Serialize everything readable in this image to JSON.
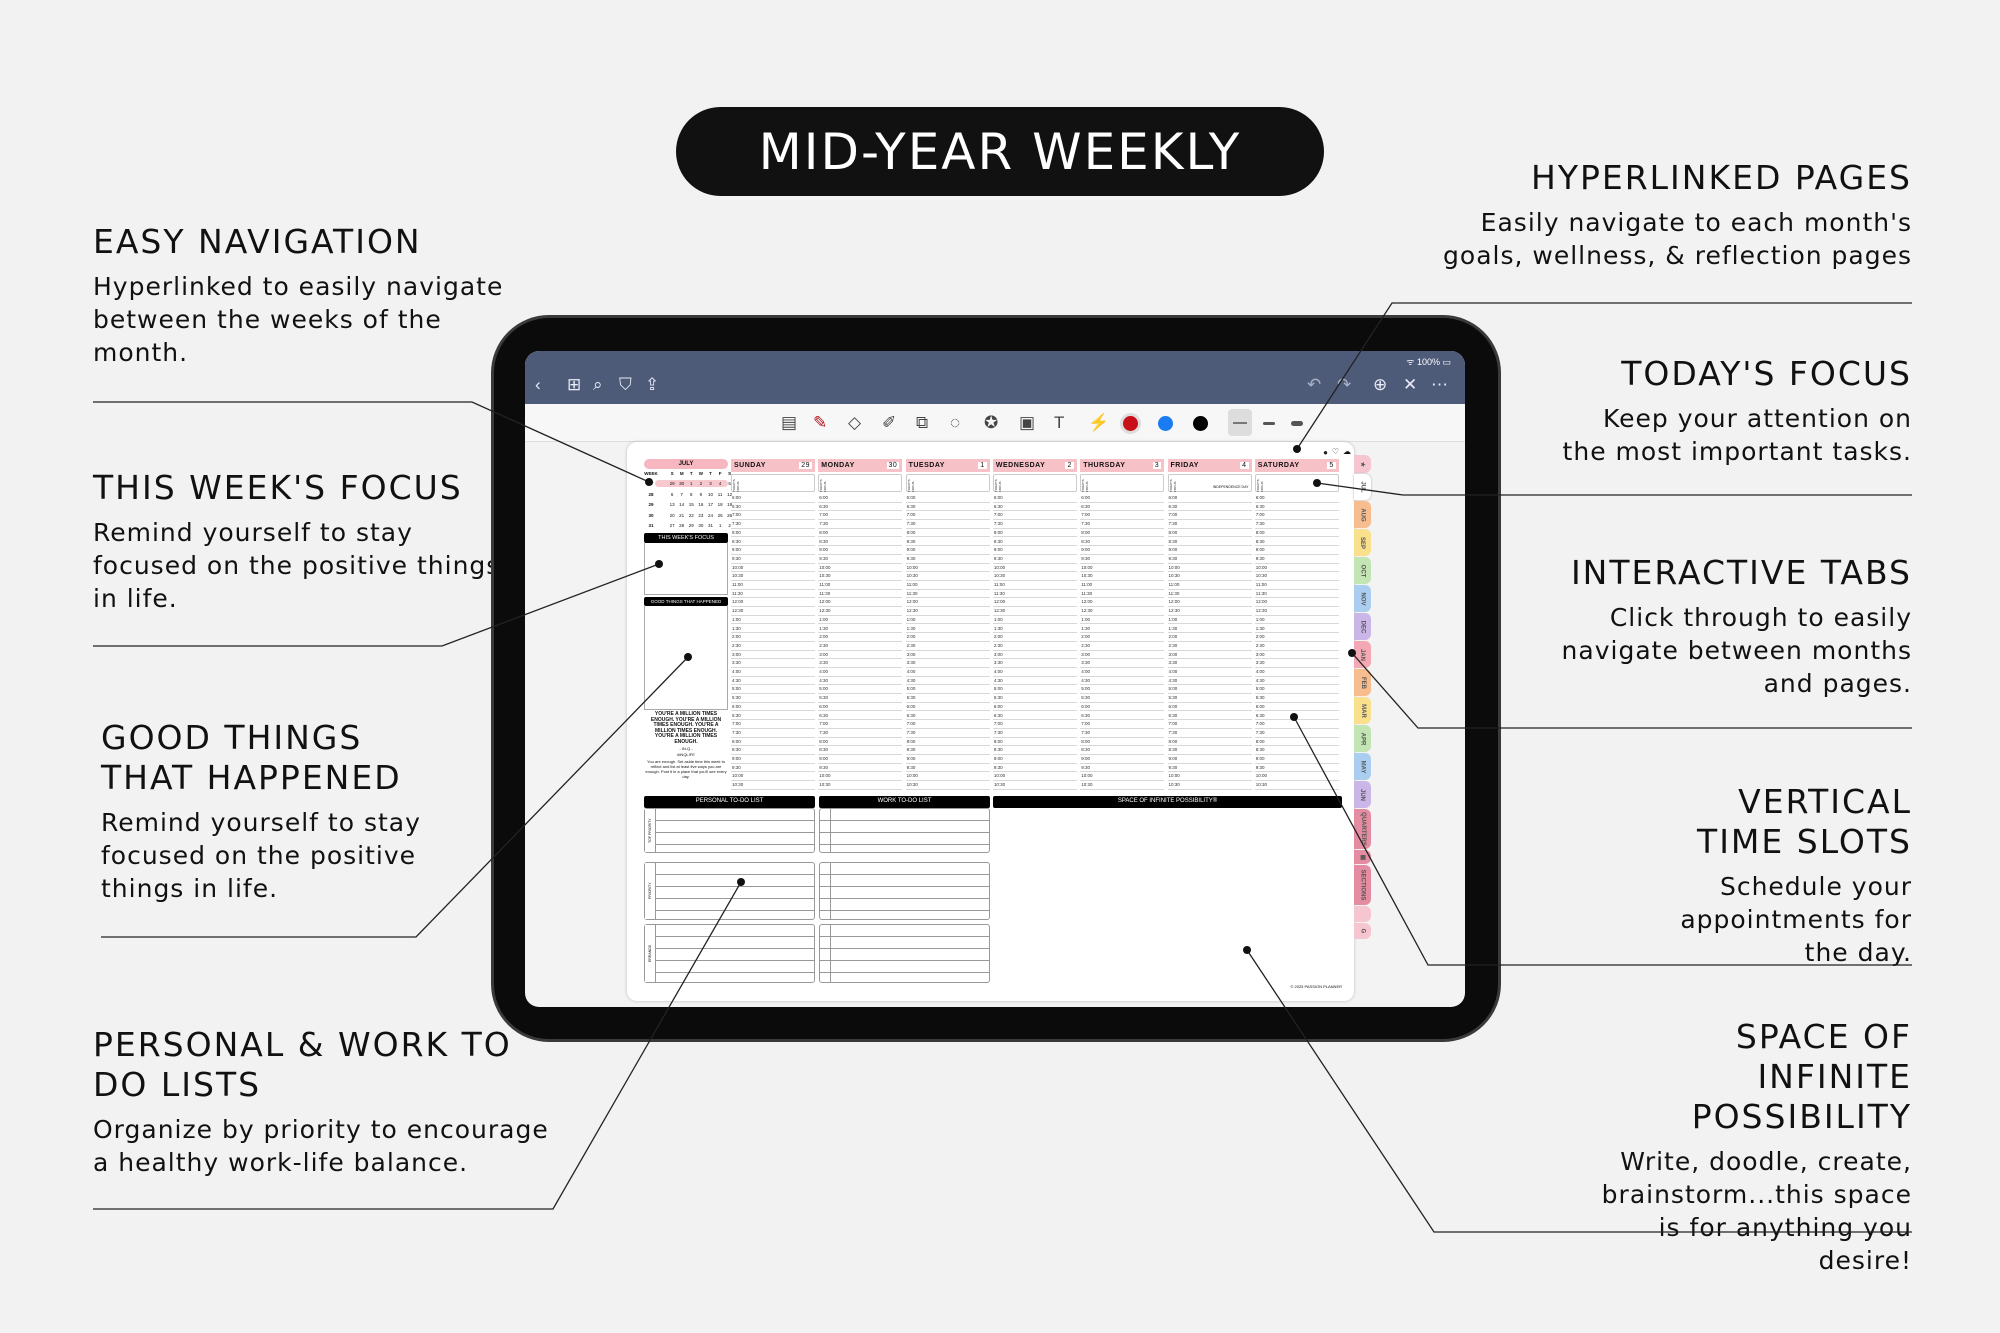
{
  "title": "MID-YEAR WEEKLY",
  "callouts_left": [
    {
      "heading": "EASY NAVIGATION",
      "body": "Hyperlinked to easily navigate between the weeks of the month."
    },
    {
      "heading": "THIS WEEK'S FOCUS",
      "body": "Remind yourself to stay focused on the positive things in life."
    },
    {
      "heading": "GOOD THINGS THAT HAPPENED",
      "body": "Remind yourself to stay focused on the positive things in life."
    },
    {
      "heading": "PERSONAL & WORK TO DO LISTS",
      "body": "Organize by priority to encourage a healthy work-life balance."
    }
  ],
  "callouts_right": [
    {
      "heading": "HYPERLINKED PAGES",
      "body": "Easily navigate to each month's goals, wellness, & reflection pages"
    },
    {
      "heading": "TODAY'S FOCUS",
      "body": "Keep your attention on the most important tasks."
    },
    {
      "heading": "INTERACTIVE TABS",
      "body": "Click through to easily navigate between months and pages."
    },
    {
      "heading": "VERTICAL TIME SLOTS",
      "body": "Schedule your appointments for the day."
    },
    {
      "heading": "SPACE OF INFINITE POSSIBILITY",
      "body": "Write, doodle, create, brainstorm...this space is for anything you desire!"
    }
  ],
  "app": {
    "battery": "100%",
    "nav_icons": [
      "back-icon",
      "grid-icon",
      "search-icon",
      "bookmark-icon",
      "share-icon"
    ],
    "nav_right_icons": [
      "undo-icon",
      "redo-icon",
      "add-page-icon",
      "close-icon",
      "more-icon"
    ],
    "tools": [
      "page-settings-icon",
      "pen-icon",
      "eraser-icon",
      "highlighter-icon",
      "shapes-icon",
      "lasso-icon",
      "sticker-icon",
      "image-icon",
      "text-icon",
      "laser-icon"
    ],
    "colors": [
      "#c8101a",
      "#1a7cf0",
      "#000000"
    ]
  },
  "planner": {
    "month": "JULY",
    "cal_header": [
      "WEEK",
      "S",
      "M",
      "T",
      "W",
      "T",
      "F",
      "S"
    ],
    "cal_rows": [
      [
        "27",
        "29",
        "30",
        "1",
        "2",
        "3",
        "4",
        "5"
      ],
      [
        "28",
        "6",
        "7",
        "8",
        "9",
        "10",
        "11",
        "12"
      ],
      [
        "29",
        "13",
        "14",
        "15",
        "16",
        "17",
        "18",
        "19"
      ],
      [
        "30",
        "20",
        "21",
        "22",
        "23",
        "24",
        "25",
        "26"
      ],
      [
        "31",
        "27",
        "28",
        "29",
        "30",
        "31",
        "1",
        "2"
      ]
    ],
    "week_focus": "THIS WEEK'S FOCUS",
    "good_things": "GOOD THINGS THAT HAPPENED",
    "quote": "YOU'RE A MILLION TIMES ENOUGH. YOU'RE A MILLION TIMES ENOUGH. YOU'RE A MILLION TIMES ENOUGH. YOU'RE A MILLION TIMES ENOUGH.",
    "quote_author": "- IN-Q -",
    "quote_tag": "#INQLIFE",
    "prompt": "You are enough. Set aside time this week to reflect and list at least five ways you are enough. Post it in a place that you'll see every day.",
    "today_focus_label": "TODAY'S FOCUS",
    "days": [
      {
        "name": "SUNDAY",
        "date": "29",
        "note": ""
      },
      {
        "name": "MONDAY",
        "date": "30",
        "note": ""
      },
      {
        "name": "TUESDAY",
        "date": "1",
        "note": ""
      },
      {
        "name": "WEDNESDAY",
        "date": "2",
        "note": ""
      },
      {
        "name": "THURSDAY",
        "date": "3",
        "note": ""
      },
      {
        "name": "FRIDAY",
        "date": "4",
        "note": "INDEPENDENCE DAY"
      },
      {
        "name": "SATURDAY",
        "date": "5",
        "note": ""
      }
    ],
    "times": [
      "6:00",
      "6:30",
      "7:00",
      "7:30",
      "8:00",
      "8:30",
      "9:00",
      "9:30",
      "10:00",
      "10:30",
      "11:00",
      "11:30",
      "12:00",
      "12:30",
      "1:00",
      "1:30",
      "2:00",
      "2:30",
      "3:00",
      "3:30",
      "4:00",
      "4:30",
      "5:00",
      "5:30",
      "6:00",
      "6:30",
      "7:00",
      "7:30",
      "8:00",
      "8:30",
      "9:00",
      "9:30",
      "10:00",
      "10:30"
    ],
    "personal_list": "PERSONAL TO-DO LIST",
    "work_list": "WORK TO-DO LIST",
    "space": "SPACE OF INFINITE POSSIBILITY®",
    "sections": [
      "TOP PRIORITY",
      "PRIORITY",
      "ERRANDS"
    ],
    "copyright": "© 2025 PASSION PLANNER",
    "header_icons": [
      "pin-icon",
      "heart-icon",
      "cloud-icon"
    ]
  },
  "tabs": [
    {
      "label": "★",
      "color": "#f6c6d0"
    },
    {
      "label": "JUL",
      "color": "#ffffff"
    },
    {
      "label": "AUG",
      "color": "#f8bd8f"
    },
    {
      "label": "SEP",
      "color": "#f9e08c"
    },
    {
      "label": "OCT",
      "color": "#c3e5b3"
    },
    {
      "label": "NOV",
      "color": "#abcdf0"
    },
    {
      "label": "DEC",
      "color": "#cbb6e8"
    },
    {
      "label": "JAN",
      "color": "#f4a8b3"
    },
    {
      "label": "FEB",
      "color": "#f8bd8f"
    },
    {
      "label": "MAR",
      "color": "#f9e08c"
    },
    {
      "label": "APR",
      "color": "#c3e5b3"
    },
    {
      "label": "MAY",
      "color": "#abcdf0"
    },
    {
      "label": "JUN",
      "color": "#cbb6e8"
    },
    {
      "label": "QUARTERS",
      "color": "#e48da2"
    },
    {
      "label": "▦",
      "color": "#e48da2"
    },
    {
      "label": "SECTIONS",
      "color": "#e48da2"
    },
    {
      "label": "",
      "color": "#f6c6d0"
    },
    {
      "label": "G",
      "color": "#f6c6d0"
    }
  ]
}
